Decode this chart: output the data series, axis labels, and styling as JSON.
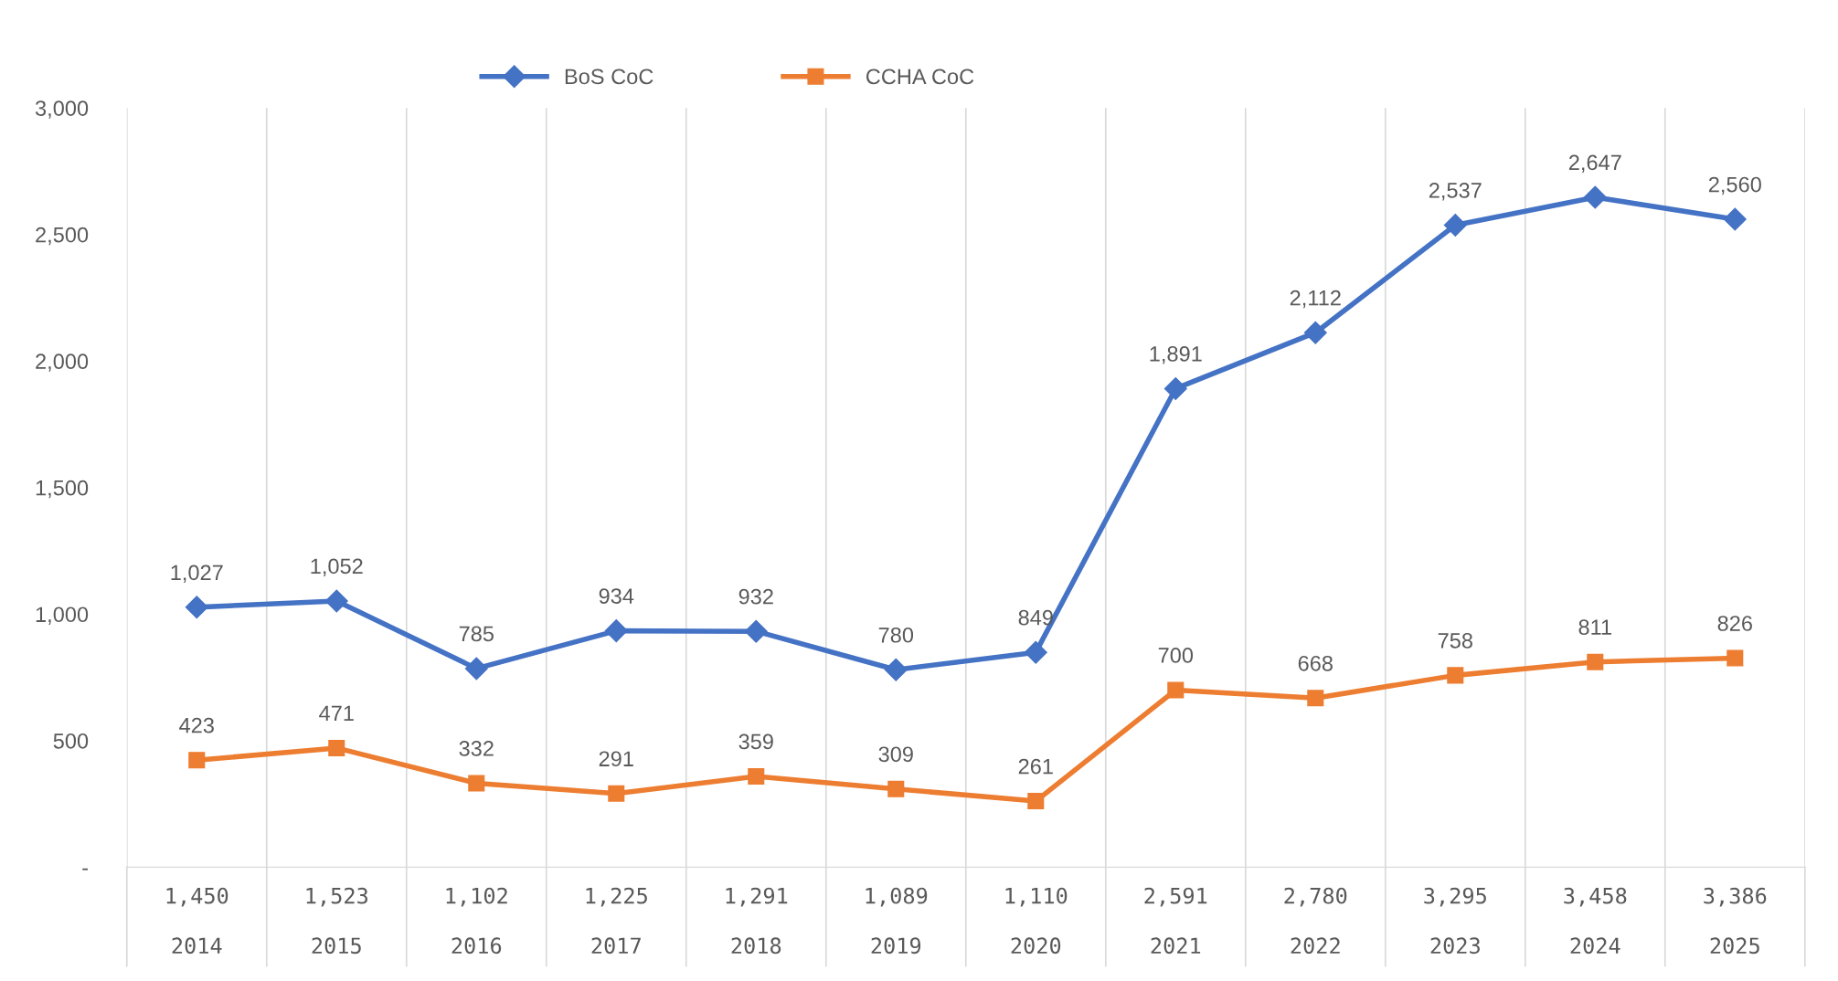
{
  "chart_data": {
    "type": "line",
    "categories": [
      "2014",
      "2015",
      "2016",
      "2017",
      "2018",
      "2019",
      "2020",
      "2021",
      "2022",
      "2023",
      "2024",
      "2025"
    ],
    "series": [
      {
        "name": "BoS CoC",
        "color": "#4472c4",
        "marker": "diamond",
        "values": [
          1027,
          1052,
          785,
          934,
          932,
          780,
          849,
          1891,
          2112,
          2537,
          2647,
          2560
        ],
        "value_labels": [
          "1,027",
          "1,052",
          "785",
          "934",
          "932",
          "780",
          "849",
          "1,891",
          "2,112",
          "2,537",
          "2,647",
          "2,560"
        ]
      },
      {
        "name": "CCHA CoC",
        "color": "#ed7d31",
        "marker": "square",
        "values": [
          423,
          471,
          332,
          291,
          359,
          309,
          261,
          700,
          668,
          758,
          811,
          826
        ],
        "value_labels": [
          "423",
          "471",
          "332",
          "291",
          "359",
          "309",
          "261",
          "700",
          "668",
          "758",
          "811",
          "826"
        ]
      }
    ],
    "totals": [
      "1,450",
      "1,523",
      "1,102",
      "1,225",
      "1,291",
      "1,089",
      "1,110",
      "2,591",
      "2,780",
      "3,295",
      "3,458",
      "3,386"
    ],
    "ylim": [
      0,
      3000
    ],
    "yticks": [
      {
        "value": 0,
        "label": "-"
      },
      500,
      {
        "value": 1000,
        "label": "1,000"
      },
      {
        "value": 1500,
        "label": "1,500"
      },
      {
        "value": 2000,
        "label": "2,000"
      },
      {
        "value": 2500,
        "label": "2,500"
      },
      {
        "value": 3000,
        "label": "3,000"
      }
    ],
    "grid": "x",
    "legend": "top"
  }
}
